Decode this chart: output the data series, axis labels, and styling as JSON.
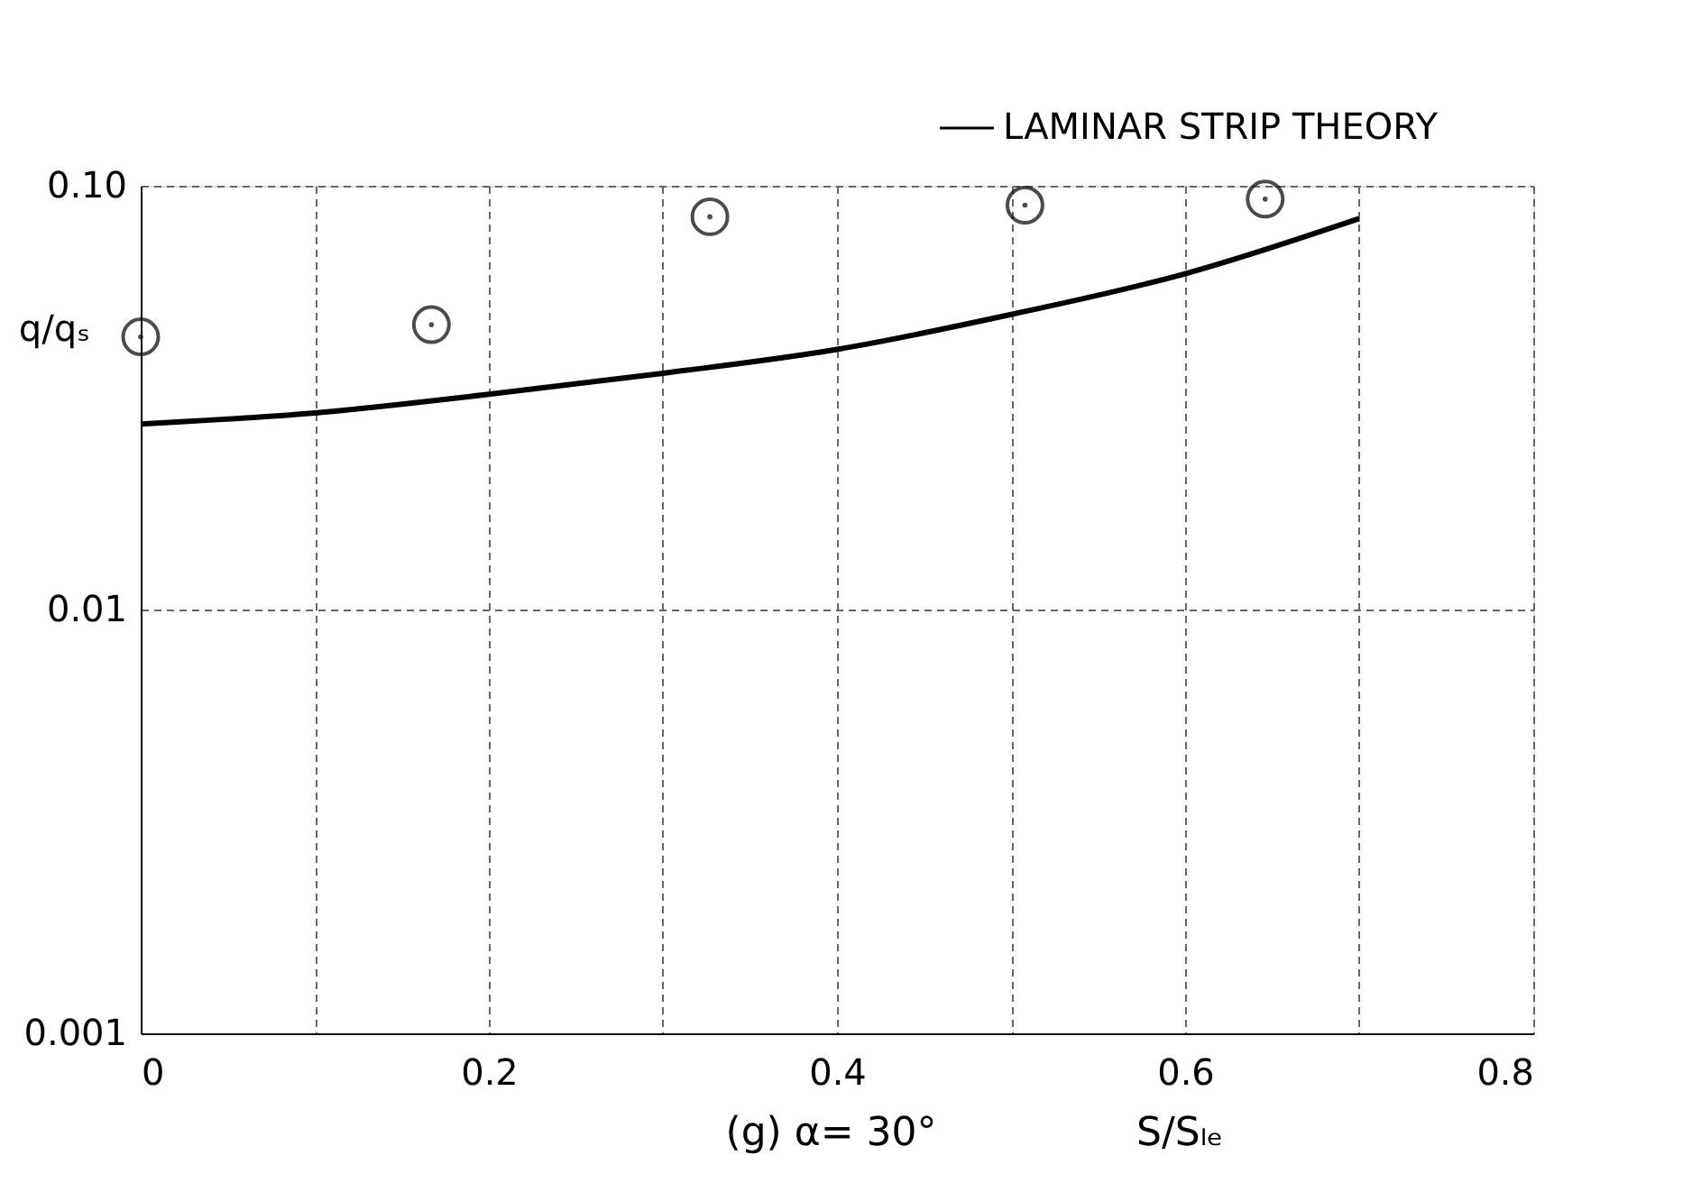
{
  "chart_data": {
    "type": "scatter",
    "xlabel": "S/Sₗₑ",
    "ylabel": "q/qₛ",
    "annotations": [
      "(g)  α= 30°"
    ],
    "series": [
      {
        "color": "#000000",
        "marker": "circle",
        "x": [
          0,
          0.167,
          0.327,
          0.508,
          0.646
        ],
        "values": [
          0.044,
          0.047,
          0.0845,
          0.09,
          0.093
        ]
      },
      {
        "type": "line",
        "name": "LAMINAR STRIP THEORY",
        "color": "#000000",
        "marker": "none",
        "line_style": "solid",
        "x": [
          0,
          0.1,
          0.2,
          0.3,
          0.4,
          0.5,
          0.6,
          0.7
        ],
        "values": [
          0.0274,
          0.0291,
          0.0322,
          0.0361,
          0.0411,
          0.0497,
          0.062,
          0.0837
        ]
      }
    ],
    "xlim": [
      0,
      0.8
    ],
    "xticks": [
      0,
      {
        "value": 0.1,
        "label": null
      },
      0.2,
      {
        "value": 0.3,
        "label": null
      },
      0.4,
      {
        "value": 0.5,
        "label": null
      },
      0.6,
      {
        "value": 0.7,
        "label": null
      },
      0.8
    ],
    "ylim": [
      0.001,
      0.1
    ],
    "yticks": [
      0.001,
      0.01,
      {
        "value": 0.1,
        "label": "0.10"
      }
    ],
    "log": "y",
    "grid": true,
    "legend": "top right"
  }
}
